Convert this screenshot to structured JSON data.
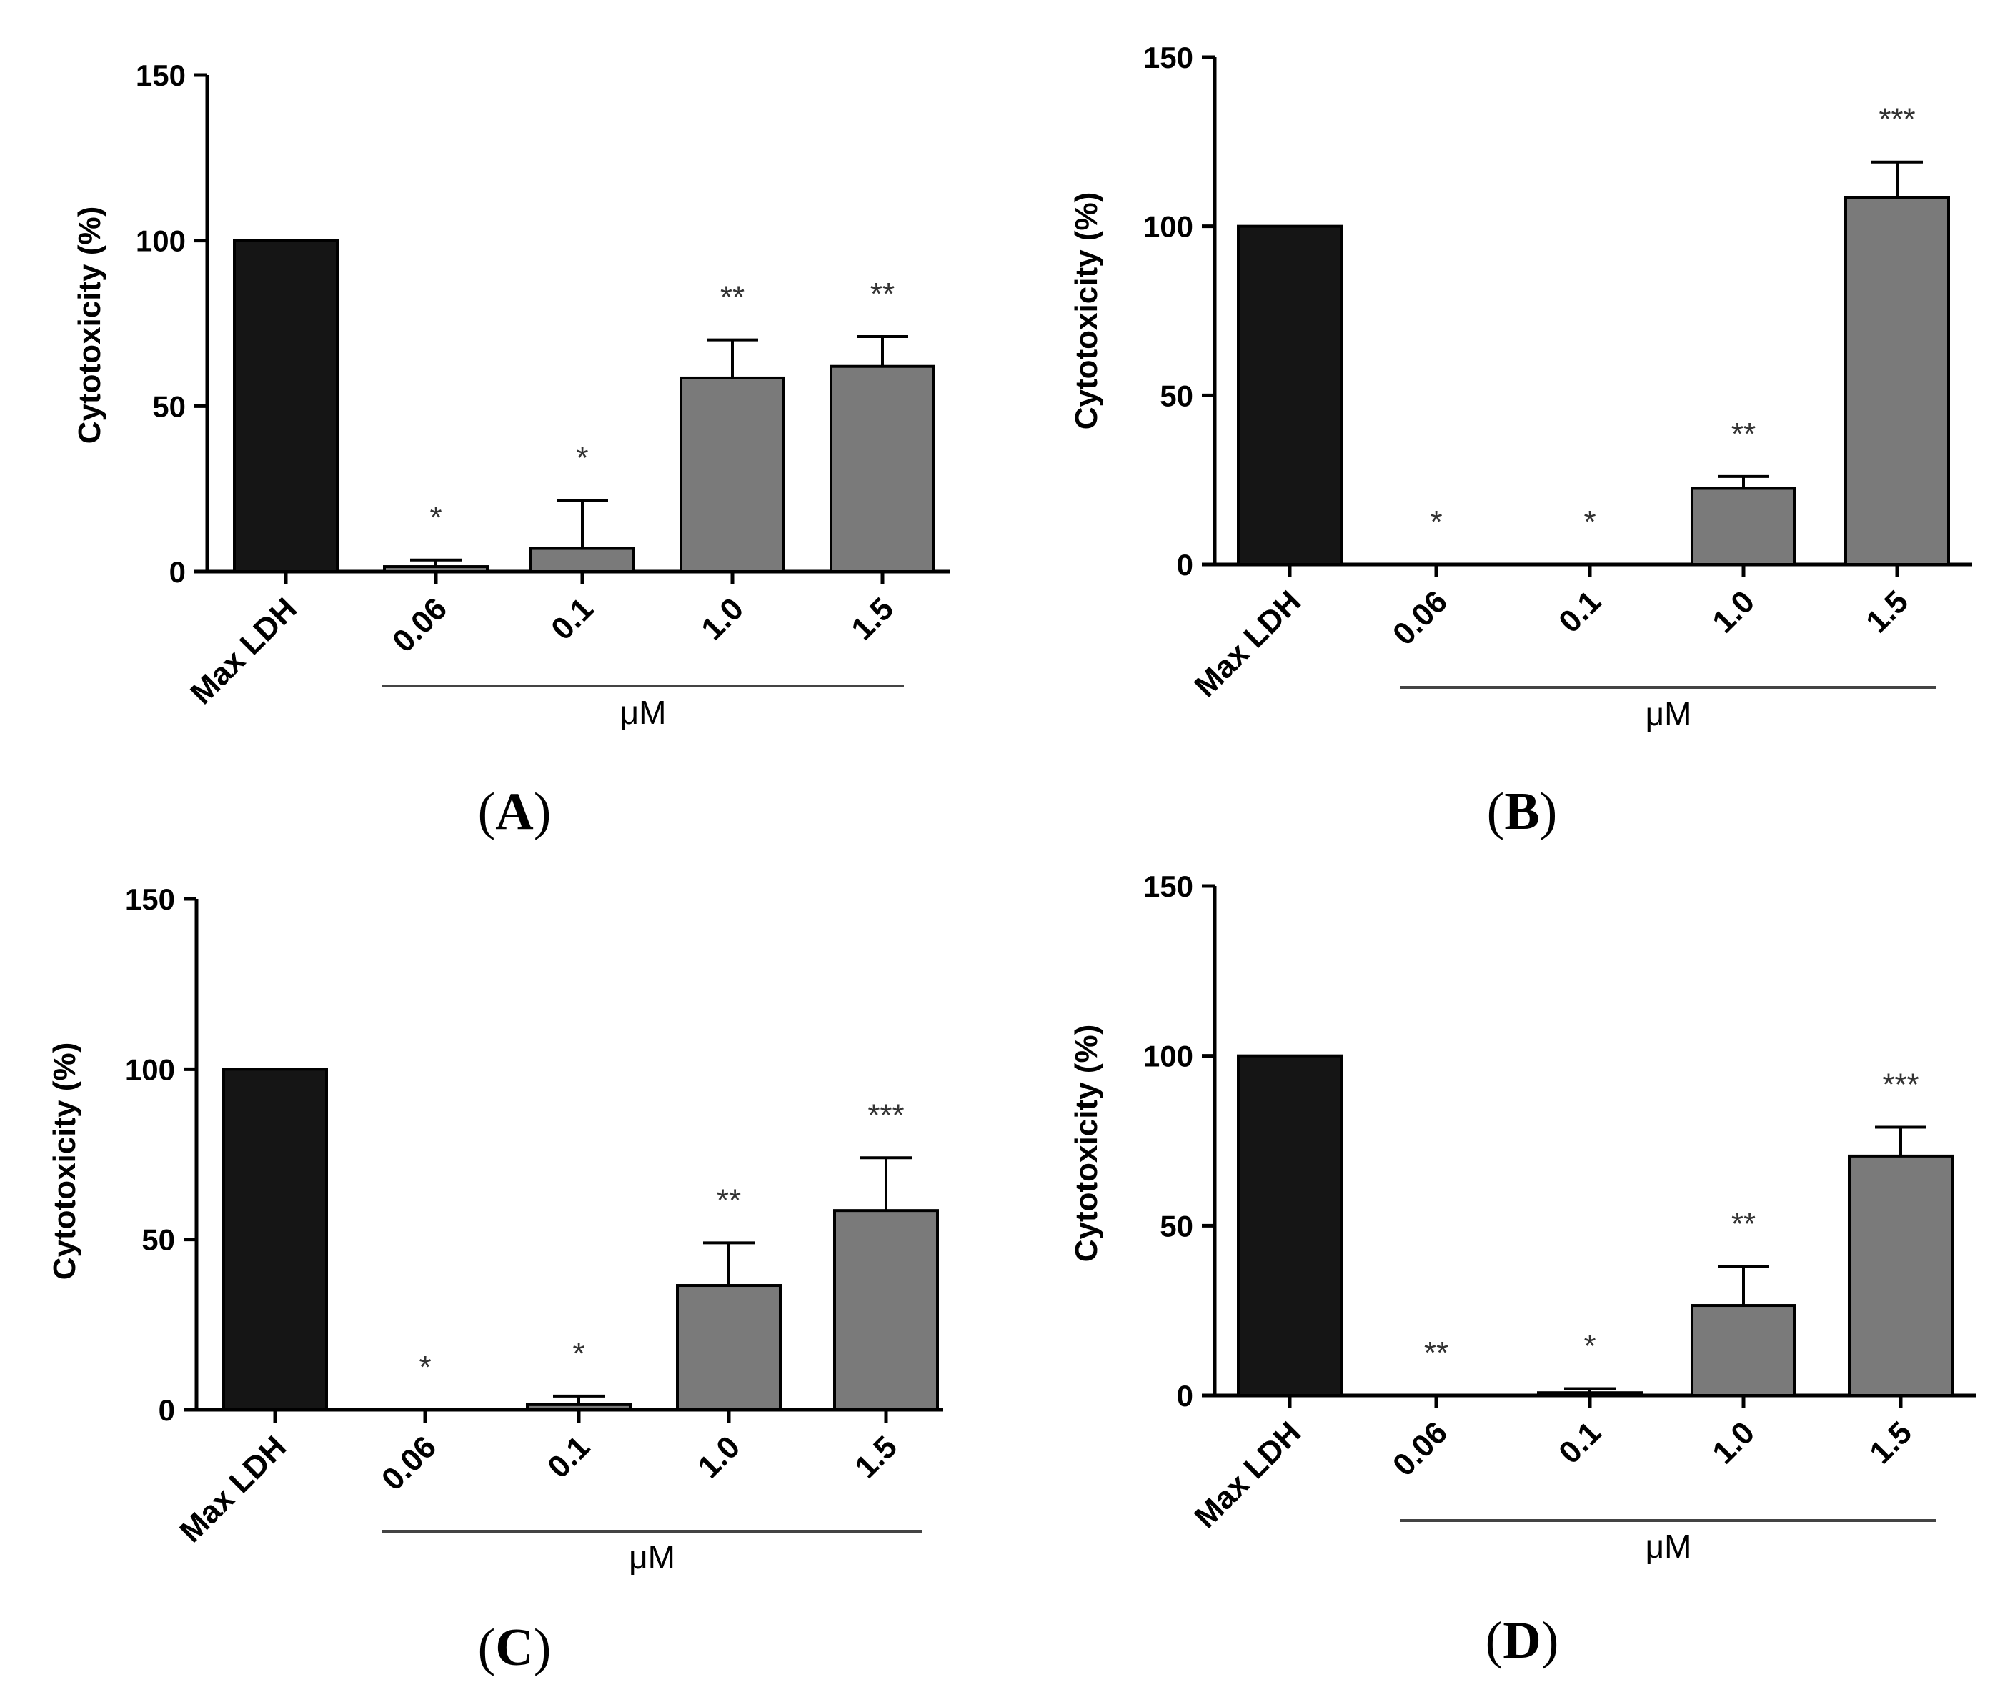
{
  "figure": {
    "colors": {
      "control_bar": "#151515",
      "treatment_bar": "#7a7a7a",
      "axis": "#000000",
      "dose_line": "#444444"
    }
  },
  "chart_data": [
    {
      "type": "bar",
      "panel_label": "A",
      "ylabel": "Cytotoxicity (%)",
      "ylim": [
        0,
        150
      ],
      "yticks": [
        "0",
        "50",
        "100",
        "150"
      ],
      "categories": [
        "Max LDH",
        "0.06",
        "0.1",
        "1.0",
        "1.5"
      ],
      "group_label": "μM",
      "values": [
        100,
        1.5,
        7,
        58.5,
        62
      ],
      "errors": [
        0,
        2,
        14.5,
        11.5,
        9
      ],
      "significance": [
        "",
        "*",
        "*",
        "**",
        "**"
      ]
    },
    {
      "type": "bar",
      "panel_label": "B",
      "ylabel": "Cytotoxicity (%)",
      "ylim": [
        0,
        150
      ],
      "yticks": [
        "0",
        "50",
        "100",
        "150"
      ],
      "categories": [
        "Max LDH",
        "0.06",
        "0.1",
        "1.0",
        "1.5"
      ],
      "group_label": "μM",
      "values": [
        100,
        0,
        0,
        22.5,
        108.5
      ],
      "errors": [
        0,
        0,
        0,
        3.5,
        10.5
      ],
      "significance": [
        "",
        "*",
        "*",
        "**",
        "***"
      ]
    },
    {
      "type": "bar",
      "panel_label": "C",
      "ylabel": "Cytotoxicity (%)",
      "ylim": [
        0,
        150
      ],
      "yticks": [
        "0",
        "50",
        "100",
        "150"
      ],
      "categories": [
        "Max LDH",
        "0.06",
        "0.1",
        "1.0",
        "1.5"
      ],
      "group_label": "μM",
      "values": [
        100,
        0,
        1.5,
        36.5,
        58.5
      ],
      "errors": [
        0,
        0,
        2.5,
        12.5,
        15.5
      ],
      "significance": [
        "",
        "*",
        "*",
        "**",
        "***"
      ]
    },
    {
      "type": "bar",
      "panel_label": "D",
      "ylabel": "Cytotoxicity (%)",
      "ylim": [
        0,
        150
      ],
      "yticks": [
        "0",
        "50",
        "100",
        "150"
      ],
      "categories": [
        "Max LDH",
        "0.06",
        "0.1",
        "1.0",
        "1.5"
      ],
      "group_label": "μM",
      "values": [
        100,
        0,
        0.8,
        26.5,
        70.5
      ],
      "errors": [
        0,
        0,
        1.2,
        11.5,
        8.5
      ],
      "significance": [
        "",
        "**",
        "*",
        "**",
        "***"
      ]
    }
  ]
}
